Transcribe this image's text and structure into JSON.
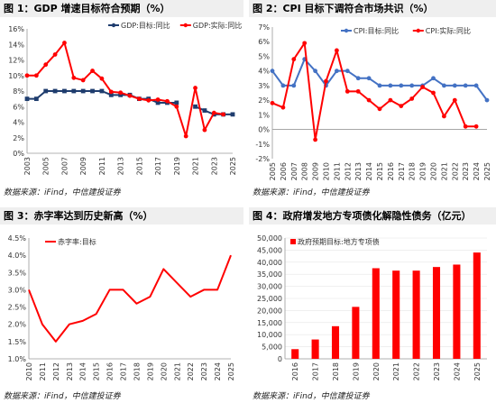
{
  "source_text": "数据来源：iFind，中信建投证券",
  "colors": {
    "red": "#ff0000",
    "navy": "#1f3d6e",
    "blue": "#4472c4",
    "axis": "#9a9a9a"
  },
  "panels": [
    {
      "title": "图 1：GDP 增速目标符合预期（%）"
    },
    {
      "title": "图 2：CPI 目标下调符合市场共识（%）"
    },
    {
      "title": "图 3：赤字率达到历史新高（%）"
    },
    {
      "title": "图 4：政府增发地方专项债化解隐性债务（亿元）"
    }
  ],
  "chart_data": [
    {
      "type": "line",
      "ylim": [
        0,
        16
      ],
      "ytick_step": 2,
      "ytick_suffix": "%",
      "ytick_decimals": 0,
      "x": [
        "2003",
        "2004",
        "2005",
        "2006",
        "2007",
        "2008",
        "2009",
        "2010",
        "2011",
        "2012",
        "2013",
        "2014",
        "2015",
        "2016",
        "2017",
        "2018",
        "2019",
        "2020",
        "2021",
        "2022",
        "2023",
        "2024",
        "2025"
      ],
      "xtick_labels": [
        "2003",
        "2005",
        "2007",
        "2009",
        "2011",
        "2013",
        "2015",
        "2017",
        "2019",
        "2021",
        "2023",
        "2025"
      ],
      "legend_position": "top-center",
      "series": [
        {
          "name": "GDP:目标:同比",
          "color": "#1f3d6e",
          "marker": "square",
          "values": [
            7,
            7,
            8,
            8,
            8,
            8,
            8,
            8,
            8,
            7.5,
            7.5,
            7.5,
            7,
            7,
            6.5,
            6.5,
            6.5,
            null,
            6,
            5.5,
            5,
            5,
            5
          ]
        },
        {
          "name": "GDP:实际:同比",
          "color": "#ff0000",
          "marker": "circle",
          "values": [
            10,
            10,
            11.4,
            12.7,
            14.2,
            9.7,
            9.4,
            10.6,
            9.6,
            7.9,
            7.8,
            7.4,
            7,
            6.8,
            6.9,
            6.7,
            6,
            2.2,
            8.4,
            3,
            5.2,
            5,
            null
          ]
        }
      ]
    },
    {
      "type": "line",
      "ylim": [
        -2,
        7
      ],
      "ytick_step": 1,
      "ytick_suffix": "%",
      "ytick_decimals": 0,
      "x": [
        "2005",
        "2006",
        "2007",
        "2008",
        "2009",
        "2010",
        "2011",
        "2012",
        "2013",
        "2014",
        "2015",
        "2016",
        "2017",
        "2018",
        "2019",
        "2020",
        "2021",
        "2022",
        "2023",
        "2024",
        "2025"
      ],
      "xtick_labels": [
        "2005",
        "2006",
        "2007",
        "2008",
        "2009",
        "2010",
        "2011",
        "2012",
        "2013",
        "2014",
        "2015",
        "2016",
        "2017",
        "2018",
        "2019",
        "2020",
        "2021",
        "2022",
        "2023",
        "2024",
        "2025"
      ],
      "legend_position": "top-right",
      "series": [
        {
          "name": "CPI:目标:同比",
          "color": "#4472c4",
          "marker": "circle",
          "values": [
            4,
            3,
            3,
            4.8,
            4,
            3,
            4,
            4,
            3.5,
            3.5,
            3,
            3,
            3,
            3,
            3,
            3.5,
            3,
            3,
            3,
            3,
            2
          ]
        },
        {
          "name": "CPI:实际:同比",
          "color": "#ff0000",
          "marker": "circle",
          "values": [
            1.8,
            1.5,
            4.8,
            5.9,
            -0.7,
            3.3,
            5.4,
            2.6,
            2.6,
            2,
            1.4,
            2,
            1.6,
            2.1,
            2.9,
            2.5,
            0.9,
            2,
            0.2,
            0.2,
            null
          ]
        }
      ]
    },
    {
      "type": "line",
      "ylim": [
        1,
        4.5
      ],
      "ytick_step": 0.5,
      "ytick_suffix": "%",
      "ytick_decimals": 1,
      "x": [
        "2010",
        "2011",
        "2012",
        "2013",
        "2014",
        "2015",
        "2016",
        "2017",
        "2018",
        "2019",
        "2020",
        "2021",
        "2022",
        "2023",
        "2024",
        "2025"
      ],
      "xtick_labels": [
        "2010",
        "2011",
        "2012",
        "2013",
        "2014",
        "2015",
        "2016",
        "2017",
        "2018",
        "2019",
        "2020",
        "2021",
        "2022",
        "2023",
        "2024",
        "2025"
      ],
      "legend_position": "top-left",
      "series": [
        {
          "name": "赤字率:目标",
          "color": "#ff0000",
          "marker": "none",
          "values": [
            3,
            2,
            1.5,
            2,
            2.1,
            2.3,
            3,
            3,
            2.6,
            2.8,
            3.6,
            3.2,
            2.8,
            3,
            3,
            4
          ]
        }
      ]
    },
    {
      "type": "bar",
      "ylim": [
        0,
        50000
      ],
      "ytick_step": 5000,
      "ytick_suffix": "",
      "ytick_decimals": 0,
      "ytick_thousands": true,
      "x": [
        "2016",
        "2017",
        "2018",
        "2019",
        "2020",
        "2021",
        "2022",
        "2023",
        "2024",
        "2025"
      ],
      "xtick_labels": [
        "2016",
        "2017",
        "2018",
        "2019",
        "2020",
        "2021",
        "2022",
        "2023",
        "2024",
        "2025"
      ],
      "legend_position": "top-left",
      "series": [
        {
          "name": "政府预期目标:地方专项债",
          "color": "#ff0000",
          "values": [
            4000,
            8000,
            13500,
            21500,
            37500,
            36500,
            36500,
            38000,
            39000,
            44000
          ]
        }
      ]
    }
  ]
}
